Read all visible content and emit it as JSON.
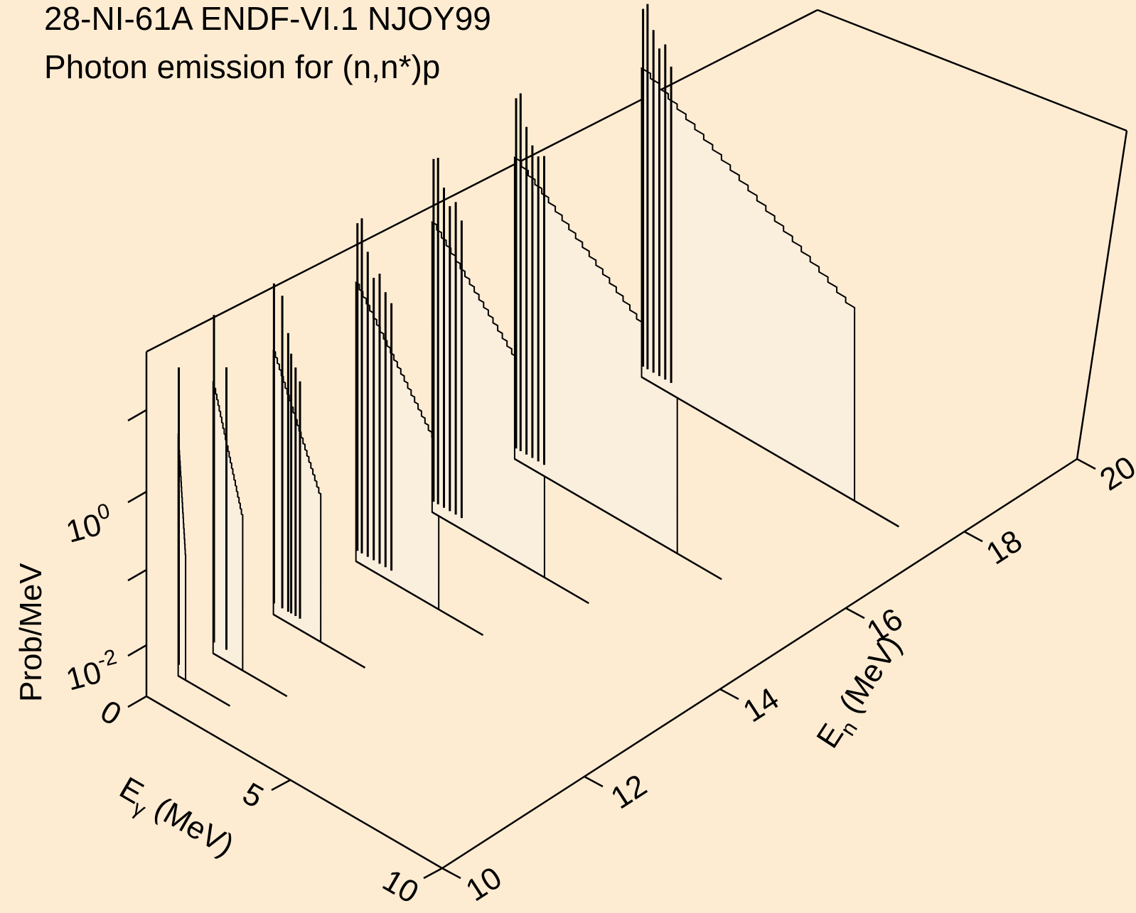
{
  "title_line1": "28-NI-61A ENDF-VI.1 NJOY99",
  "title_line2": "Photon emission for (n,n*)p",
  "colors": {
    "background": "#feecd2",
    "fill": "#faeedd",
    "line": "#000000"
  },
  "chart_data": {
    "type": "waterfall-3d",
    "title": "28-NI-61A ENDF-VI.1 NJOY99",
    "subtitle": "Photon emission for (n,n*)p",
    "x_axis": {
      "label_main": "E",
      "label_sub": "γ",
      "label_rest": " (MeV)",
      "range": [
        0,
        10
      ],
      "ticks": [
        "0",
        "5",
        "10"
      ]
    },
    "y_axis": {
      "label_main": "E",
      "label_sub": "n",
      "label_rest": " (MeV)",
      "range": [
        10,
        20
      ],
      "ticks": [
        "10",
        "12",
        "14",
        "16",
        "18",
        "20"
      ]
    },
    "z_axis": {
      "label": "Prob/MeV",
      "scale": "log",
      "ticks": [
        {
          "base": "10",
          "exp": "-2"
        },
        {
          "base": "10",
          "exp": "0"
        }
      ]
    },
    "series": [
      {
        "en": 10.5,
        "max_egamma": 0.25,
        "spikes": [
          {
            "eg": 0.02,
            "log10p": 1.1
          }
        ]
      },
      {
        "en": 11.05,
        "max_egamma": 1.0,
        "spikes": [
          {
            "eg": 0.03,
            "log10p": 1.5
          },
          {
            "eg": 0.45,
            "log10p": 0.9
          }
        ]
      },
      {
        "en": 12.0,
        "max_egamma": 1.6,
        "spikes": [
          {
            "eg": 0.02,
            "log10p": 1.4
          },
          {
            "eg": 0.3,
            "log10p": 1.3
          },
          {
            "eg": 0.5,
            "log10p": 0.85
          },
          {
            "eg": 0.6,
            "log10p": 0.6
          },
          {
            "eg": 0.75,
            "log10p": 0.45
          },
          {
            "eg": 0.9,
            "log10p": 0.3
          }
        ]
      },
      {
        "en": 13.3,
        "max_egamma": 2.8,
        "spikes": [
          {
            "eg": 0.05,
            "log10p": 1.5
          },
          {
            "eg": 0.2,
            "log10p": 1.6
          },
          {
            "eg": 0.4,
            "log10p": 1.2
          },
          {
            "eg": 0.6,
            "log10p": 0.9
          },
          {
            "eg": 0.8,
            "log10p": 1.0
          },
          {
            "eg": 1.0,
            "log10p": 0.8
          },
          {
            "eg": 1.2,
            "log10p": 0.7
          }
        ]
      },
      {
        "en": 14.5,
        "max_egamma": 3.8,
        "spikes": [
          {
            "eg": 0.05,
            "log10p": 1.7
          },
          {
            "eg": 0.2,
            "log10p": 1.75
          },
          {
            "eg": 0.4,
            "log10p": 1.4
          },
          {
            "eg": 0.6,
            "log10p": 1.2
          },
          {
            "eg": 0.8,
            "log10p": 1.3
          },
          {
            "eg": 1.0,
            "log10p": 1.1
          }
        ]
      },
      {
        "en": 15.8,
        "max_egamma": 5.5,
        "spikes": [
          {
            "eg": 0.05,
            "log10p": 1.8
          },
          {
            "eg": 0.2,
            "log10p": 1.9
          },
          {
            "eg": 0.4,
            "log10p": 1.5
          },
          {
            "eg": 0.6,
            "log10p": 1.3
          },
          {
            "eg": 0.8,
            "log10p": 1.2
          },
          {
            "eg": 1.0,
            "log10p": 1.25
          }
        ]
      },
      {
        "en": 17.8,
        "max_egamma": 7.2,
        "spikes": [
          {
            "eg": 0.05,
            "log10p": 1.9
          },
          {
            "eg": 0.2,
            "log10p": 2.0
          },
          {
            "eg": 0.4,
            "log10p": 1.7
          },
          {
            "eg": 0.6,
            "log10p": 1.5
          },
          {
            "eg": 0.8,
            "log10p": 1.6
          },
          {
            "eg": 1.0,
            "log10p": 1.35
          }
        ]
      }
    ]
  }
}
